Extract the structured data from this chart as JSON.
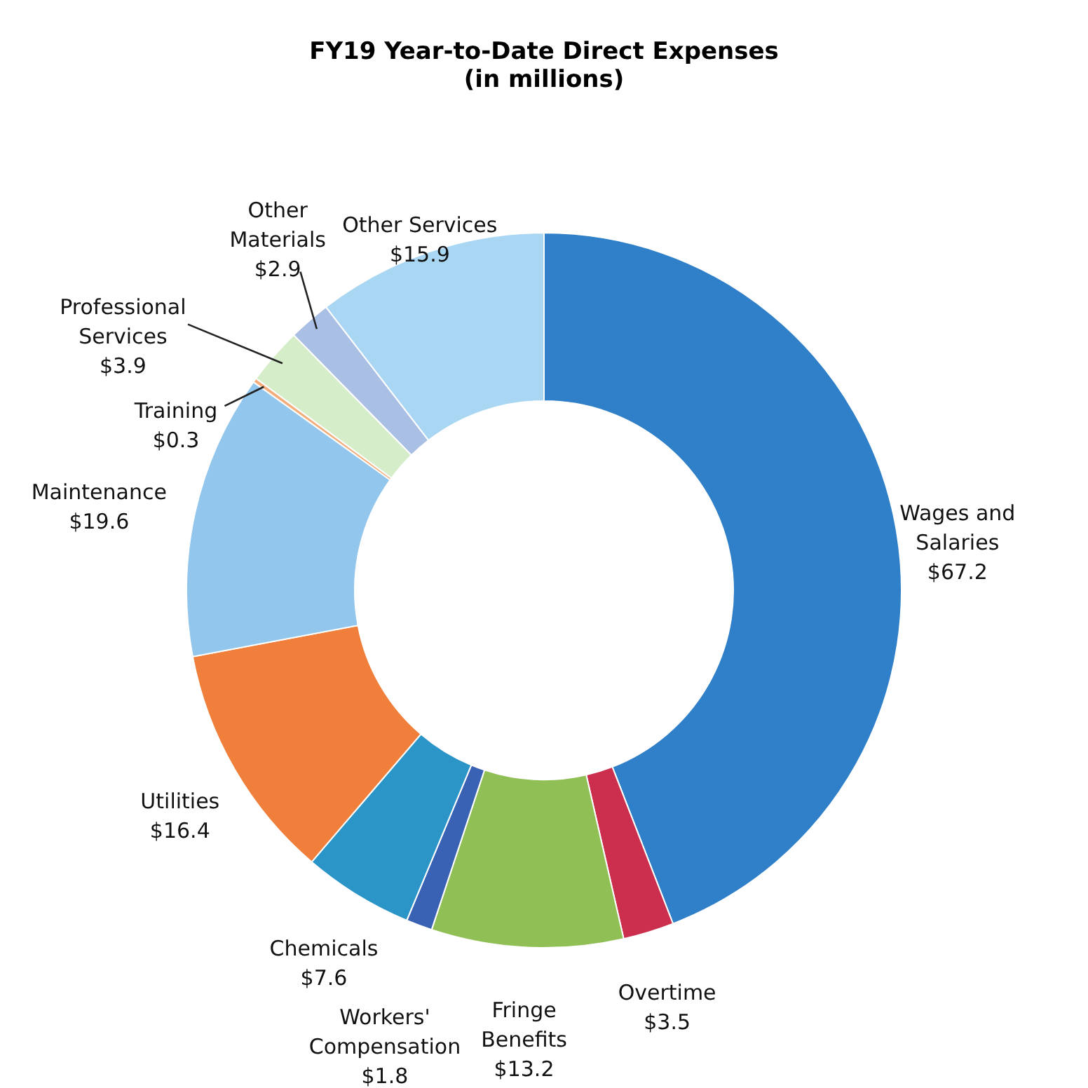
{
  "chart_data": {
    "type": "donut",
    "title": "FY19 Year-to-Date Direct Expenses",
    "subtitle": "(in millions)",
    "categories": [
      "Wages and Salaries",
      "Overtime",
      "Fringe Benefits",
      "Workers' Compensation",
      "Chemicals",
      "Utilities",
      "Maintenance",
      "Training",
      "Professional Services",
      "Other Materials",
      "Other Services"
    ],
    "values": [
      67.2,
      3.5,
      13.2,
      1.8,
      7.6,
      16.4,
      19.6,
      0.3,
      3.9,
      2.9,
      15.9
    ],
    "value_labels": [
      "$67.2",
      "$3.5",
      "$13.2",
      "$1.8",
      "$7.6",
      "$16.4",
      "$19.6",
      "$0.3",
      "$3.9",
      "$2.9",
      "$15.9"
    ],
    "colors": [
      "#2f80c8",
      "#cc2f4e",
      "#8fbf55",
      "#3a62b4",
      "#2b95c8",
      "#ef7f3b",
      "#92c6ec",
      "#f2ad7a",
      "#d6edc9",
      "#a9bfe3",
      "#a9d6f2"
    ]
  }
}
